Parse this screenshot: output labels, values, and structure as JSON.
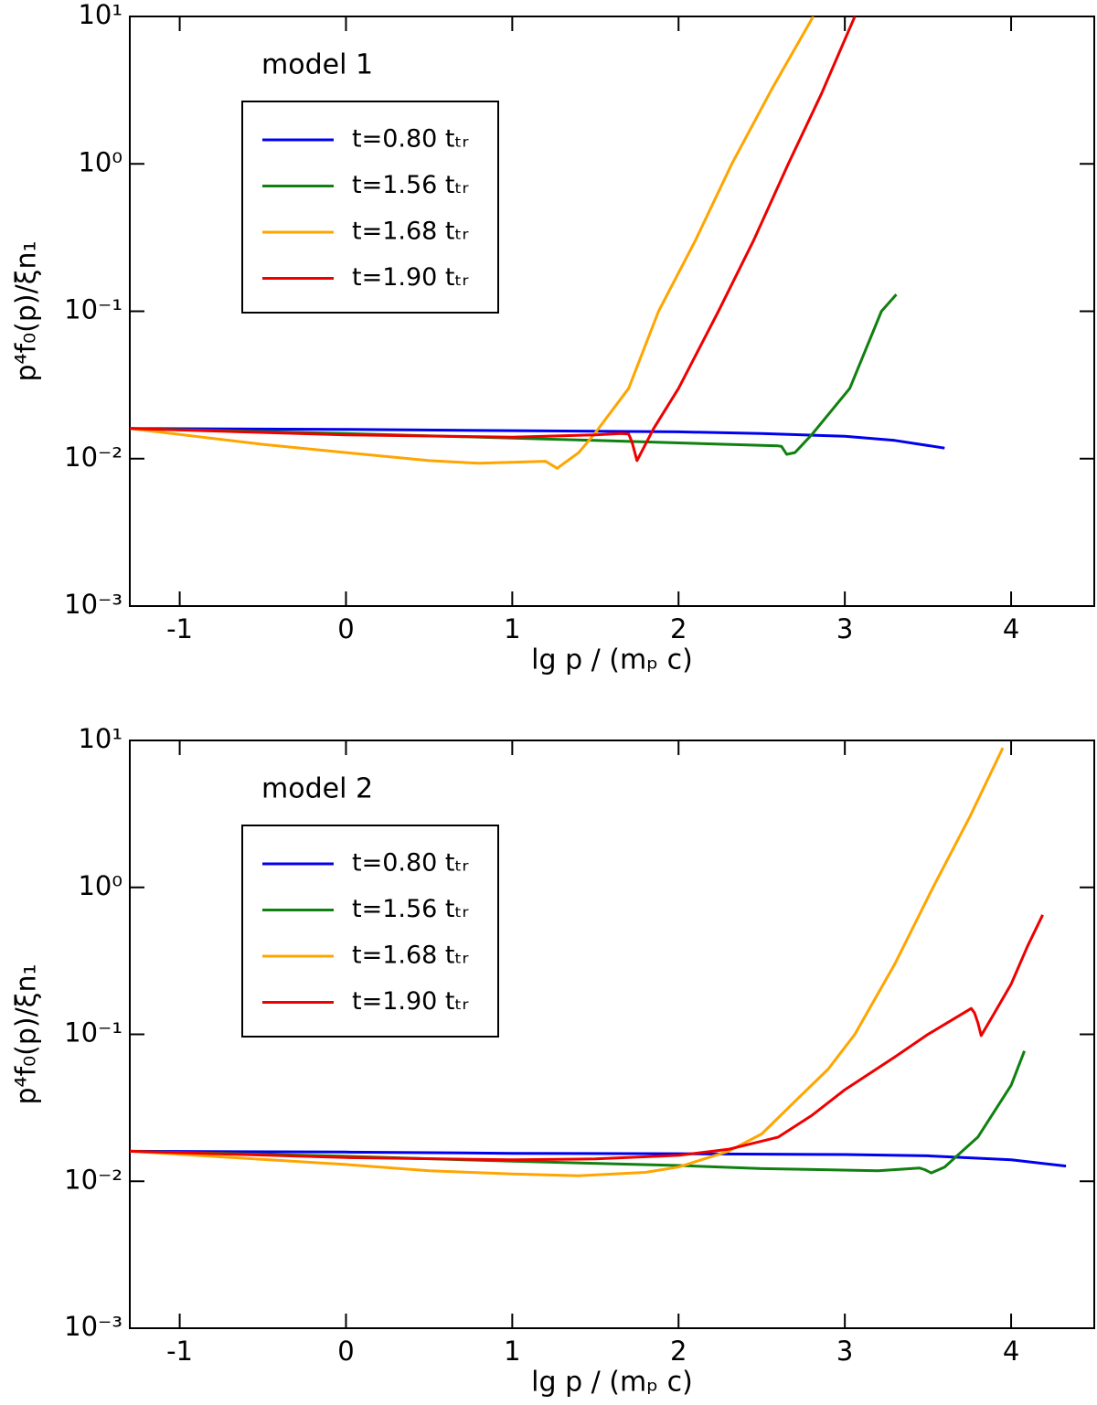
{
  "chart_data": [
    {
      "type": "line",
      "annotation": "model 1",
      "x_label": "lg p / (mₚ c)",
      "y_label": "p⁴f₀(p)/ξn₁",
      "xlim": [
        -1.3,
        4.5
      ],
      "ylim": [
        0.001,
        10
      ],
      "log_y": true,
      "legend": "upper left",
      "xticks": [
        -1,
        0,
        1,
        2,
        3,
        4
      ],
      "yticks": [
        {
          "value": 0.001,
          "label": "10⁻³"
        },
        {
          "value": 0.01,
          "label": "10⁻²"
        },
        {
          "value": 0.1,
          "label": "10⁻¹"
        },
        {
          "value": 1,
          "label": "10⁰"
        },
        {
          "value": 10,
          "label": "10¹"
        }
      ],
      "series": [
        {
          "name": "t=0.80 tₜᵣ",
          "color": "#0000ee",
          "x": [
            -1.3,
            0,
            1,
            2,
            2.5,
            3,
            3.3,
            3.6
          ],
          "values": [
            0.016,
            0.0158,
            0.0155,
            0.0152,
            0.0148,
            0.0142,
            0.0133,
            0.0118
          ]
        },
        {
          "name": "t=1.56 tₜᵣ",
          "color": "#108010",
          "x": [
            -1.3,
            0,
            1,
            1.5,
            2,
            2.6,
            2.62,
            2.65,
            2.7,
            2.8,
            3.03,
            3.22,
            3.31
          ],
          "values": [
            0.016,
            0.0148,
            0.0138,
            0.0133,
            0.0128,
            0.0122,
            0.0121,
            0.0107,
            0.011,
            0.0145,
            0.03,
            0.1,
            0.13
          ]
        },
        {
          "name": "t=1.68 tₜᵣ",
          "color": "#ffa500",
          "x": [
            -1.3,
            -0.5,
            0,
            0.5,
            0.8,
            1.2,
            1.22,
            1.27,
            1.4,
            1.5,
            1.7,
            1.88,
            2.1,
            2.32,
            2.56,
            2.81
          ],
          "values": [
            0.016,
            0.0125,
            0.011,
            0.0097,
            0.0093,
            0.0096,
            0.0093,
            0.0086,
            0.011,
            0.015,
            0.03,
            0.1,
            0.3,
            1,
            3.2,
            10
          ]
        },
        {
          "name": "t=1.90 tₜᵣ",
          "color": "#ee0000",
          "x": [
            -1.3,
            0,
            1,
            1.5,
            1.65,
            1.7,
            1.72,
            1.75,
            1.85,
            2.0,
            2.24,
            2.45,
            2.66,
            2.86,
            3.06
          ],
          "values": [
            0.016,
            0.0145,
            0.014,
            0.0145,
            0.0148,
            0.0147,
            0.013,
            0.0097,
            0.016,
            0.03,
            0.1,
            0.3,
            1,
            3,
            10
          ]
        }
      ]
    },
    {
      "type": "line",
      "annotation": "model 2",
      "x_label": "lg p / (mₚ c)",
      "y_label": "p⁴f₀(p)/ξn₁",
      "xlim": [
        -1.3,
        4.5
      ],
      "ylim": [
        0.001,
        10
      ],
      "log_y": true,
      "legend": "upper left",
      "xticks": [
        -1,
        0,
        1,
        2,
        3,
        4
      ],
      "yticks": [
        {
          "value": 0.001,
          "label": "10⁻³"
        },
        {
          "value": 0.01,
          "label": "10⁻²"
        },
        {
          "value": 0.1,
          "label": "10⁻¹"
        },
        {
          "value": 1,
          "label": "10⁰"
        },
        {
          "value": 10,
          "label": "10¹"
        }
      ],
      "series": [
        {
          "name": "t=0.80 tₜᵣ",
          "color": "#0000ee",
          "x": [
            -1.3,
            0,
            1,
            2,
            3,
            3.5,
            4,
            4.33
          ],
          "values": [
            0.016,
            0.0158,
            0.0155,
            0.0154,
            0.0152,
            0.0149,
            0.014,
            0.0127
          ]
        },
        {
          "name": "t=1.56 tₜᵣ",
          "color": "#108010",
          "x": [
            -1.3,
            0,
            1,
            2,
            2.5,
            3.2,
            3.45,
            3.48,
            3.52,
            3.6,
            3.8,
            4.0,
            4.08
          ],
          "values": [
            0.016,
            0.0148,
            0.0137,
            0.0128,
            0.0122,
            0.0118,
            0.0123,
            0.012,
            0.0114,
            0.0125,
            0.02,
            0.045,
            0.077
          ]
        },
        {
          "name": "t=1.68 tₜᵣ",
          "color": "#ffa500",
          "x": [
            -1.3,
            0,
            0.5,
            1,
            1.4,
            1.8,
            2.0,
            2.3,
            2.5,
            2.7,
            2.9,
            3.06,
            3.3,
            3.53,
            3.75,
            3.95
          ],
          "values": [
            0.016,
            0.013,
            0.0118,
            0.0112,
            0.0109,
            0.0115,
            0.0125,
            0.016,
            0.021,
            0.035,
            0.058,
            0.1,
            0.3,
            1,
            3,
            8.9
          ]
        },
        {
          "name": "t=1.90 tₜᵣ",
          "color": "#ee0000",
          "x": [
            -1.3,
            0,
            1,
            1.5,
            2,
            2.3,
            2.6,
            2.8,
            3.0,
            3.3,
            3.5,
            3.76,
            3.78,
            3.8,
            3.82,
            3.9,
            4.0,
            4.1,
            4.19
          ],
          "values": [
            0.016,
            0.0145,
            0.014,
            0.0142,
            0.015,
            0.0165,
            0.02,
            0.028,
            0.042,
            0.07,
            0.1,
            0.15,
            0.14,
            0.12,
            0.098,
            0.14,
            0.22,
            0.4,
            0.65
          ]
        }
      ]
    }
  ]
}
